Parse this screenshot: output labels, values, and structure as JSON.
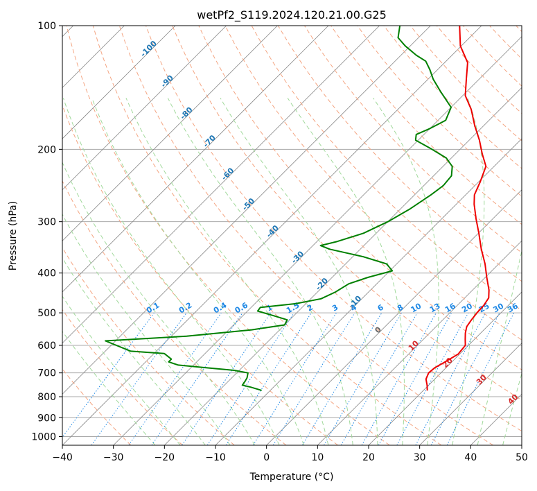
{
  "chart_data": {
    "type": "line",
    "title": "wetPf2_S119.2024.120.21.00.G25",
    "xlabel": "Temperature (°C)",
    "ylabel": "Pressure (hPa)",
    "xlim": [
      -40,
      50
    ],
    "ylim": [
      1050,
      100
    ],
    "y_scale": "log",
    "grid": true,
    "x_ticks": [
      -40,
      -30,
      -20,
      -10,
      0,
      10,
      20,
      30,
      40,
      50
    ],
    "y_ticks": [
      1000,
      900,
      800,
      700,
      600,
      500,
      400,
      300,
      200,
      100
    ],
    "skew": true,
    "series": [
      {
        "role": "temperature",
        "color": "#ee0000",
        "points": [
          [
            20.8,
            773
          ],
          [
            19.7,
            750
          ],
          [
            18.3,
            725
          ],
          [
            17.6,
            700
          ],
          [
            17.8,
            680
          ],
          [
            18.6,
            660
          ],
          [
            19.7,
            630
          ],
          [
            19.4,
            600
          ],
          [
            18.2,
            580
          ],
          [
            17.0,
            560
          ],
          [
            16.0,
            540
          ],
          [
            15.6,
            520
          ],
          [
            15.3,
            500
          ],
          [
            15.2,
            480
          ],
          [
            14.7,
            460
          ],
          [
            13.2,
            440
          ],
          [
            10.3,
            410
          ],
          [
            7.3,
            380
          ],
          [
            3.7,
            350
          ],
          [
            0.1,
            320
          ],
          [
            -3.3,
            295
          ],
          [
            -6.5,
            272
          ],
          [
            -8.3,
            258
          ],
          [
            -9.7,
            240
          ],
          [
            -11.6,
            220
          ],
          [
            -14.8,
            205
          ],
          [
            -18.0,
            190
          ],
          [
            -21.8,
            175
          ],
          [
            -25.6,
            160
          ],
          [
            -29.5,
            148
          ],
          [
            -32.5,
            135
          ],
          [
            -35.5,
            123
          ],
          [
            -40.2,
            112
          ],
          [
            -44.3,
            100
          ]
        ]
      },
      {
        "role": "dewpoint",
        "color": "#008000",
        "points": [
          [
            -11.7,
            772
          ],
          [
            -14.5,
            758
          ],
          [
            -16.5,
            750
          ],
          [
            -16.7,
            735
          ],
          [
            -17.0,
            720
          ],
          [
            -17.8,
            700
          ],
          [
            -21.0,
            690
          ],
          [
            -27.0,
            680
          ],
          [
            -33.0,
            670
          ],
          [
            -35.5,
            658
          ],
          [
            -35.5,
            648
          ],
          [
            -38.0,
            628
          ],
          [
            -45.0,
            620
          ],
          [
            -52.0,
            585
          ],
          [
            -37.0,
            570
          ],
          [
            -25.5,
            550
          ],
          [
            -20.0,
            535
          ],
          [
            -20.5,
            520
          ],
          [
            -24.0,
            508
          ],
          [
            -28.0,
            495
          ],
          [
            -28.2,
            485
          ],
          [
            -22.0,
            475
          ],
          [
            -18.0,
            462
          ],
          [
            -16.5,
            445
          ],
          [
            -15.5,
            425
          ],
          [
            -13.0,
            410
          ],
          [
            -9.5,
            395
          ],
          [
            -12.0,
            380
          ],
          [
            -18.0,
            365
          ],
          [
            -26.0,
            350
          ],
          [
            -28.5,
            343
          ],
          [
            -26.0,
            335
          ],
          [
            -22.5,
            320
          ],
          [
            -20.0,
            300
          ],
          [
            -18.2,
            280
          ],
          [
            -16.8,
            258
          ],
          [
            -16.2,
            245
          ],
          [
            -16.5,
            232
          ],
          [
            -18.2,
            220
          ],
          [
            -21.0,
            210
          ],
          [
            -25.5,
            200
          ],
          [
            -30.5,
            190
          ],
          [
            -31.5,
            184
          ],
          [
            -30.0,
            178
          ],
          [
            -28.5,
            170
          ],
          [
            -30.0,
            158
          ],
          [
            -35.0,
            145
          ],
          [
            -39.0,
            135
          ],
          [
            -41.5,
            128
          ],
          [
            -44.0,
            122
          ],
          [
            -47.0,
            118
          ],
          [
            -51.0,
            112
          ],
          [
            -54.0,
            107
          ],
          [
            -56.0,
            100
          ]
        ]
      }
    ],
    "mixing_ratio_labels": [
      "0.1",
      "0.2",
      "0.4",
      "0.6",
      "1",
      "1.5",
      "2",
      "3",
      "4",
      "6",
      "8",
      "10",
      "13",
      "16",
      "20",
      "25",
      "30",
      "36"
    ],
    "dry_adiabat_labels": [
      "-100",
      "-90",
      "-80",
      "-70",
      "-60",
      "-50",
      "-40",
      "-30",
      "-20",
      "-10"
    ],
    "moist_adiabat_labels": [
      "0",
      "10",
      "20",
      "30",
      "40"
    ]
  },
  "colors": {
    "dry_adiabat": "#f4a582",
    "moist_adiabat": "#a1d99b",
    "mixing_ratio": "#1e88e5",
    "isotherm": "#888888",
    "isobar": "#aaaaaa",
    "dry_label": "#1f77b4",
    "moist_label": "#d62728",
    "mixing_label": "#1e88e5"
  }
}
